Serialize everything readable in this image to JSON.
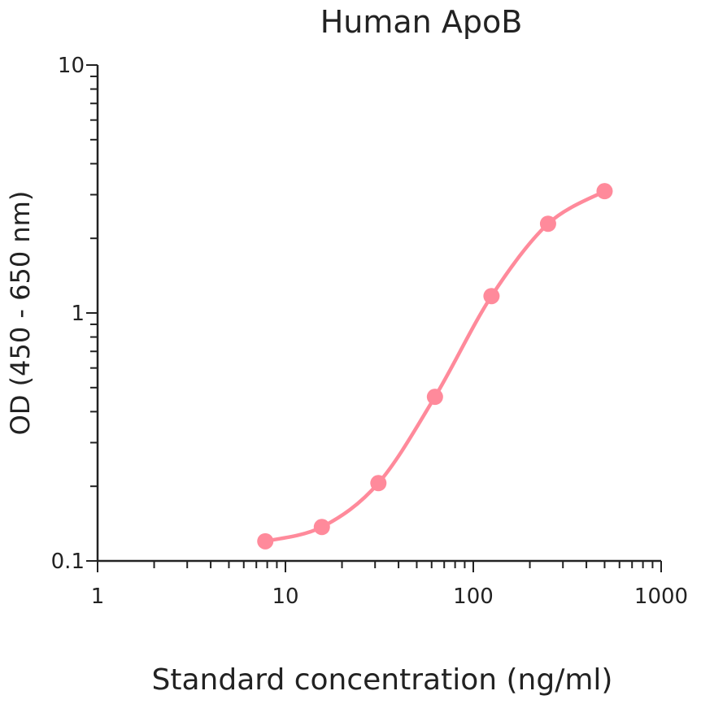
{
  "chart_data": {
    "type": "line",
    "title": "Human ApoB",
    "xlabel": "Standard concentration (ng/ml)",
    "ylabel": "OD (450 - 650 nm)",
    "x_scale": "log",
    "y_scale": "log",
    "xlim": [
      1,
      1000
    ],
    "ylim": [
      0.1,
      10
    ],
    "x_ticks": [
      "1",
      "10",
      "100",
      "1000"
    ],
    "y_ticks": [
      "0.1",
      "1",
      "10"
    ],
    "grid": false,
    "series": [
      {
        "color": "#ff8a9b",
        "x": [
          7.8125,
          15.625,
          31.25,
          62.5,
          125,
          250,
          500
        ],
        "y": [
          0.12,
          0.137,
          0.206,
          0.459,
          1.17,
          2.29,
          3.1
        ]
      }
    ]
  }
}
